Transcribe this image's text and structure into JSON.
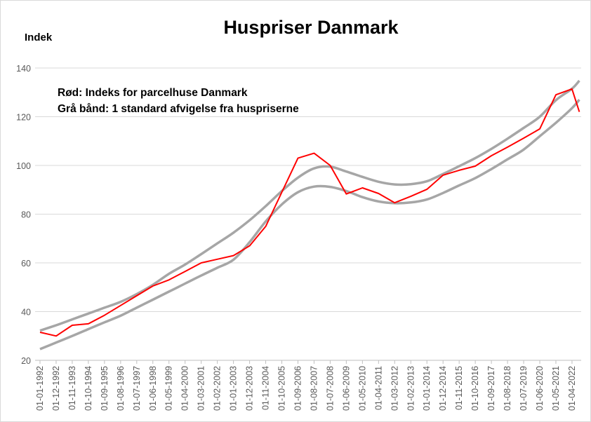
{
  "chart_data": {
    "type": "line",
    "title": "Huspriser Danmark",
    "ylabel": "Indek",
    "ylim": [
      20,
      140
    ],
    "yticks": [
      20,
      40,
      60,
      80,
      100,
      120,
      140
    ],
    "grid": true,
    "annotations": [
      "Rød: Indeks for parcelhuse Danmark",
      "Grå bånd: 1 standard afvigelse fra huspriserne"
    ],
    "x_tick_labels": [
      "01-01-1992",
      "01-12-1992",
      "01-11-1993",
      "01-10-1994",
      "01-09-1995",
      "01-08-1996",
      "01-07-1997",
      "01-06-1998",
      "01-05-1999",
      "01-04-2000",
      "01-03-2001",
      "01-02-2002",
      "01-01-2003",
      "01-12-2003",
      "01-11-2004",
      "01-10-2005",
      "01-09-2006",
      "01-08-2007",
      "01-07-2008",
      "01-06-2009",
      "01-05-2010",
      "01-04-2011",
      "01-03-2012",
      "01-02-2013",
      "01-01-2014",
      "01-12-2014",
      "01-11-2015",
      "01-10-2016",
      "01-09-2017",
      "01-08-2018",
      "01-07-2019",
      "01-06-2020",
      "01-05-2021",
      "01-04-2022"
    ],
    "x": [
      "1992-01",
      "1992-12",
      "1993-11",
      "1994-10",
      "1995-09",
      "1996-08",
      "1997-07",
      "1998-06",
      "1999-05",
      "2000-04",
      "2001-03",
      "2002-02",
      "2003-01",
      "2003-12",
      "2004-11",
      "2005-10",
      "2006-09",
      "2007-08",
      "2008-07",
      "2009-06",
      "2010-05",
      "2011-04",
      "2012-03",
      "2013-02",
      "2014-01",
      "2014-12",
      "2015-11",
      "2016-10",
      "2017-09",
      "2018-08",
      "2019-07",
      "2020-06",
      "2021-05",
      "2022-04",
      "2022-09"
    ],
    "series": [
      {
        "name": "Indeks for parcelhuse Danmark",
        "color": "#ff0000",
        "values": [
          31.5,
          30,
          34.4,
          35,
          38.5,
          42.5,
          46.5,
          50.5,
          53,
          56.5,
          60,
          61.5,
          63,
          67,
          75,
          89,
          103,
          105,
          100,
          88.3,
          90.8,
          88.5,
          84.7,
          87.3,
          90.2,
          96,
          98,
          99.7,
          104,
          107.5,
          111.2,
          115,
          129,
          131.4,
          122
        ]
      },
      {
        "color": "#a6a6a6",
        "values": [
          32.2,
          34.4,
          36.8,
          39.2,
          41.6,
          44,
          47.2,
          51,
          55.5,
          59.3,
          63.6,
          68,
          72.4,
          77.5,
          83.3,
          89.5,
          95,
          98.8,
          99.5,
          97.5,
          95.3,
          93.3,
          92.2,
          92.3,
          93.5,
          96.5,
          99.7,
          103,
          106.8,
          111,
          115.4,
          120,
          126.8,
          131.5,
          134.8
        ]
      },
      {
        "color": "#a6a6a6",
        "values": [
          24.6,
          27.3,
          30,
          32.8,
          35.6,
          38.3,
          41.6,
          44.9,
          48.2,
          51.5,
          54.8,
          58,
          61.3,
          68.5,
          77,
          84,
          89,
          91.3,
          91.2,
          89.5,
          87,
          85.2,
          84.5,
          84.8,
          86,
          88.7,
          91.8,
          94.8,
          98.5,
          102.5,
          106.5,
          112,
          117.5,
          123.5,
          127
        ]
      }
    ]
  }
}
